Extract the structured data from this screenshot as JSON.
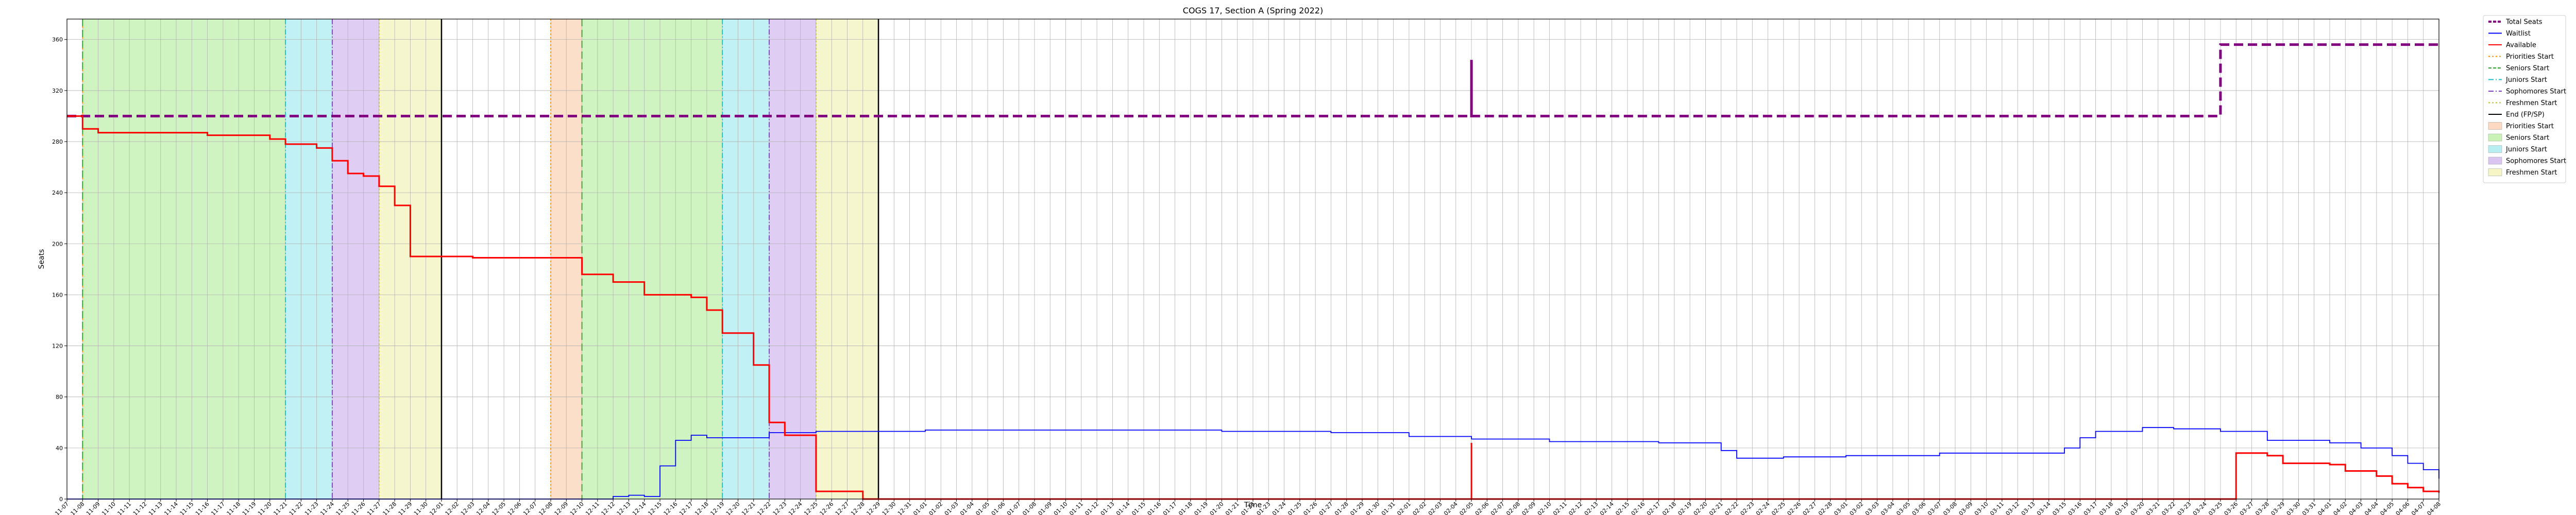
{
  "chart_data": {
    "type": "line",
    "title": "COGS 17, Section A (Spring 2022)",
    "xlabel": "Time",
    "ylabel": "Seats",
    "ylim": [
      0,
      376
    ],
    "yticks": [
      0,
      40,
      80,
      120,
      160,
      200,
      240,
      280,
      320,
      360
    ],
    "grid": true,
    "legend_placement": "outside-top-right",
    "x_start": "2021-11-07",
    "x_end": "2022-04-08",
    "x_ticks": [
      "2021-11-07",
      "2021-11-08",
      "2021-11-09",
      "2021-11-10",
      "2021-11-11",
      "2021-11-12",
      "2021-11-13",
      "2021-11-14",
      "2021-11-15",
      "2021-11-16",
      "2021-11-17",
      "2021-11-18",
      "2021-11-19",
      "2021-11-20",
      "2021-11-21",
      "2021-11-22",
      "2021-11-23",
      "2021-11-24",
      "2021-11-25",
      "2021-11-26",
      "2021-11-27",
      "2021-11-28",
      "2021-11-29",
      "2021-11-30",
      "2021-12-01",
      "2021-12-02",
      "2021-12-03",
      "2021-12-04",
      "2021-12-05",
      "2021-12-06",
      "2021-12-07",
      "2021-12-08",
      "2021-12-09",
      "2021-12-10",
      "2021-12-11",
      "2021-12-12",
      "2021-12-13",
      "2021-12-14",
      "2021-12-15",
      "2021-12-16",
      "2021-12-17",
      "2021-12-18",
      "2021-12-19",
      "2021-12-20",
      "2021-12-21",
      "2021-12-22",
      "2021-12-23",
      "2021-12-24",
      "2021-12-25",
      "2021-12-26",
      "2021-12-27",
      "2021-12-28",
      "2021-12-29",
      "2021-12-30",
      "2021-12-31",
      "2022-01-01",
      "2022-01-02",
      "2022-01-03",
      "2022-01-04",
      "2022-01-05",
      "2022-01-06",
      "2022-01-07",
      "2022-01-08",
      "2022-01-09",
      "2022-01-10",
      "2022-01-11",
      "2022-01-12",
      "2022-01-13",
      "2022-01-14",
      "2022-01-15",
      "2022-01-16",
      "2022-01-17",
      "2022-01-18",
      "2022-01-19",
      "2022-01-20",
      "2022-01-21",
      "2022-01-22",
      "2022-01-23",
      "2022-01-24",
      "2022-01-25",
      "2022-01-26",
      "2022-01-27",
      "2022-01-28",
      "2022-01-29",
      "2022-01-30",
      "2022-01-31",
      "2022-02-01",
      "2022-02-02",
      "2022-02-03",
      "2022-02-04",
      "2022-02-05",
      "2022-02-06",
      "2022-02-07",
      "2022-02-08",
      "2022-02-09",
      "2022-02-10",
      "2022-02-11",
      "2022-02-12",
      "2022-02-13",
      "2022-02-14",
      "2022-02-15",
      "2022-02-16",
      "2022-02-17",
      "2022-02-18",
      "2022-02-19",
      "2022-02-20",
      "2022-02-21",
      "2022-02-22",
      "2022-02-23",
      "2022-02-24",
      "2022-02-25",
      "2022-02-26",
      "2022-02-27",
      "2022-02-28",
      "2022-03-01",
      "2022-03-02",
      "2022-03-03",
      "2022-03-04",
      "2022-03-05",
      "2022-03-06",
      "2022-03-07",
      "2022-03-08",
      "2022-03-09",
      "2022-03-10",
      "2022-03-11",
      "2022-03-12",
      "2022-03-13",
      "2022-03-14",
      "2022-03-15",
      "2022-03-16",
      "2022-03-17",
      "2022-03-18",
      "2022-03-19",
      "2022-03-20",
      "2022-03-21",
      "2022-03-22",
      "2022-03-23",
      "2022-03-24",
      "2022-03-25",
      "2022-03-26",
      "2022-03-27",
      "2022-03-28",
      "2022-03-29",
      "2022-03-30",
      "2022-03-31",
      "2022-04-01",
      "2022-04-02",
      "2022-04-03",
      "2022-04-04",
      "2022-04-05",
      "2022-04-06",
      "2022-04-07",
      "2022-04-08"
    ],
    "series": [
      {
        "name": "Total Seats",
        "color": "#800080",
        "style": "dashed",
        "points": [
          [
            "2021-11-07",
            300
          ],
          [
            "2021-11-08",
            300
          ],
          [
            "2022-02-05",
            300
          ],
          [
            "2022-02-05",
            344
          ],
          [
            "2022-02-05",
            300
          ],
          [
            "2022-03-25",
            300
          ],
          [
            "2022-03-25",
            356
          ],
          [
            "2022-04-08",
            356
          ]
        ]
      },
      {
        "name": "Waitlist",
        "color": "#0000ff",
        "style": "solid",
        "points": [
          [
            "2021-11-07",
            0
          ],
          [
            "2021-12-11",
            0
          ],
          [
            "2021-12-12",
            2
          ],
          [
            "2021-12-13",
            3
          ],
          [
            "2021-12-14",
            2
          ],
          [
            "2021-12-15",
            26
          ],
          [
            "2021-12-16",
            46
          ],
          [
            "2021-12-17",
            50
          ],
          [
            "2021-12-18",
            48
          ],
          [
            "2021-12-20",
            48
          ],
          [
            "2021-12-22",
            52
          ],
          [
            "2021-12-25",
            53
          ],
          [
            "2022-01-01",
            54
          ],
          [
            "2022-01-10",
            54
          ],
          [
            "2022-01-20",
            53
          ],
          [
            "2022-01-27",
            52
          ],
          [
            "2022-02-01",
            49
          ],
          [
            "2022-02-05",
            47
          ],
          [
            "2022-02-10",
            45
          ],
          [
            "2022-02-17",
            44
          ],
          [
            "2022-02-20",
            44
          ],
          [
            "2022-02-21",
            38
          ],
          [
            "2022-02-22",
            32
          ],
          [
            "2022-02-25",
            33
          ],
          [
            "2022-03-01",
            34
          ],
          [
            "2022-03-05",
            34
          ],
          [
            "2022-03-07",
            36
          ],
          [
            "2022-03-12",
            36
          ],
          [
            "2022-03-15",
            40
          ],
          [
            "2022-03-16",
            48
          ],
          [
            "2022-03-17",
            53
          ],
          [
            "2022-03-20",
            56
          ],
          [
            "2022-03-22",
            55
          ],
          [
            "2022-03-25",
            53
          ],
          [
            "2022-03-28",
            46
          ],
          [
            "2022-04-01",
            44
          ],
          [
            "2022-04-03",
            40
          ],
          [
            "2022-04-05",
            34
          ],
          [
            "2022-04-06",
            28
          ],
          [
            "2022-04-07",
            23
          ],
          [
            "2022-04-08",
            16
          ]
        ]
      },
      {
        "name": "Available",
        "color": "#ff0000",
        "style": "solid",
        "points": [
          [
            "2021-11-07",
            300
          ],
          [
            "2021-11-08",
            290
          ],
          [
            "2021-11-09",
            287
          ],
          [
            "2021-11-16",
            285
          ],
          [
            "2021-11-20",
            282
          ],
          [
            "2021-11-21",
            278
          ],
          [
            "2021-11-23",
            275
          ],
          [
            "2021-11-24",
            265
          ],
          [
            "2021-11-25",
            255
          ],
          [
            "2021-11-26",
            253
          ],
          [
            "2021-11-27",
            245
          ],
          [
            "2021-11-28",
            230
          ],
          [
            "2021-11-29",
            190
          ],
          [
            "2021-12-02",
            190
          ],
          [
            "2021-12-03",
            189
          ],
          [
            "2021-12-09",
            189
          ],
          [
            "2021-12-10",
            176
          ],
          [
            "2021-12-12",
            170
          ],
          [
            "2021-12-14",
            160
          ],
          [
            "2021-12-17",
            158
          ],
          [
            "2021-12-18",
            148
          ],
          [
            "2021-12-19",
            130
          ],
          [
            "2021-12-20",
            130
          ],
          [
            "2021-12-21",
            105
          ],
          [
            "2021-12-22",
            60
          ],
          [
            "2021-12-23",
            50
          ],
          [
            "2021-12-24",
            50
          ],
          [
            "2021-12-25",
            6
          ],
          [
            "2021-12-27",
            6
          ],
          [
            "2021-12-28",
            0
          ],
          [
            "2022-02-05",
            0
          ],
          [
            "2022-02-05",
            44
          ],
          [
            "2022-02-05",
            0
          ],
          [
            "2022-03-25",
            0
          ],
          [
            "2022-03-26",
            36
          ],
          [
            "2022-03-28",
            34
          ],
          [
            "2022-03-29",
            28
          ],
          [
            "2022-04-01",
            27
          ],
          [
            "2022-04-02",
            22
          ],
          [
            "2022-04-04",
            18
          ],
          [
            "2022-04-05",
            12
          ],
          [
            "2022-04-06",
            9
          ],
          [
            "2022-04-07",
            6
          ],
          [
            "2022-04-08",
            5
          ]
        ]
      }
    ],
    "markers": [
      {
        "name": "Priorities Start",
        "color": "#ff8c00",
        "style": "dotted",
        "dates": [
          "2021-11-08",
          "2021-12-08"
        ]
      },
      {
        "name": "Seniors Start",
        "color": "#2ca02c",
        "style": "dashed",
        "dates": [
          "2021-11-08",
          "2021-12-10"
        ]
      },
      {
        "name": "Juniors Start",
        "color": "#17becf",
        "style": "dashdot",
        "dates": [
          "2021-11-21",
          "2021-12-19"
        ]
      },
      {
        "name": "Sophomores Start",
        "color": "#7b3fbf",
        "style": "dashdot",
        "dates": [
          "2021-11-24",
          "2021-12-22"
        ]
      },
      {
        "name": "Freshmen Start",
        "color": "#bcbd22",
        "style": "dotted",
        "dates": [
          "2021-11-27",
          "2021-12-25"
        ]
      },
      {
        "name": "End (FP/SP)",
        "color": "#000000",
        "style": "solid",
        "dates": [
          "2021-12-01",
          "2021-12-29"
        ]
      }
    ],
    "spans": [
      {
        "name": "Priorities Start",
        "color": "#fcd9c0",
        "ranges": [
          [
            "2021-11-08",
            "2021-11-08"
          ],
          [
            "2021-12-08",
            "2021-12-10"
          ]
        ]
      },
      {
        "name": "Seniors Start",
        "color": "#c8f2b6",
        "ranges": [
          [
            "2021-11-08",
            "2021-11-21"
          ],
          [
            "2021-12-10",
            "2021-12-19"
          ]
        ]
      },
      {
        "name": "Juniors Start",
        "color": "#b6eef2",
        "ranges": [
          [
            "2021-11-21",
            "2021-11-24"
          ],
          [
            "2021-12-19",
            "2021-12-22"
          ]
        ]
      },
      {
        "name": "Sophomores Start",
        "color": "#d9c4f2",
        "ranges": [
          [
            "2021-11-24",
            "2021-11-27"
          ],
          [
            "2021-12-22",
            "2021-12-25"
          ]
        ]
      },
      {
        "name": "Freshmen Start",
        "color": "#f5f5c6",
        "ranges": [
          [
            "2021-11-27",
            "2021-12-01"
          ],
          [
            "2021-12-25",
            "2021-12-29"
          ]
        ]
      }
    ],
    "legend": [
      {
        "label": "Total Seats",
        "kind": "line",
        "color": "#800080",
        "style": "dashed"
      },
      {
        "label": "Waitlist",
        "kind": "line",
        "color": "#0000ff",
        "style": "solid"
      },
      {
        "label": "Available",
        "kind": "line",
        "color": "#ff0000",
        "style": "solid"
      },
      {
        "label": "Priorities Start",
        "kind": "line",
        "color": "#ff8c00",
        "style": "dotted"
      },
      {
        "label": "Seniors Start",
        "kind": "line",
        "color": "#2ca02c",
        "style": "dashed"
      },
      {
        "label": "Juniors Start",
        "kind": "line",
        "color": "#17becf",
        "style": "dashdot"
      },
      {
        "label": "Sophomores Start",
        "kind": "line",
        "color": "#7b3fbf",
        "style": "dashdot"
      },
      {
        "label": "Freshmen Start",
        "kind": "line",
        "color": "#bcbd22",
        "style": "dotted"
      },
      {
        "label": "End (FP/SP)",
        "kind": "line",
        "color": "#000000",
        "style": "solid"
      },
      {
        "label": "Priorities Start",
        "kind": "patch",
        "color": "#fcd9c0"
      },
      {
        "label": "Seniors Start",
        "kind": "patch",
        "color": "#c8f2b6"
      },
      {
        "label": "Juniors Start",
        "kind": "patch",
        "color": "#b6eef2"
      },
      {
        "label": "Sophomores Start",
        "kind": "patch",
        "color": "#d9c4f2"
      },
      {
        "label": "Freshmen Start",
        "kind": "patch",
        "color": "#f5f5c6"
      }
    ]
  }
}
